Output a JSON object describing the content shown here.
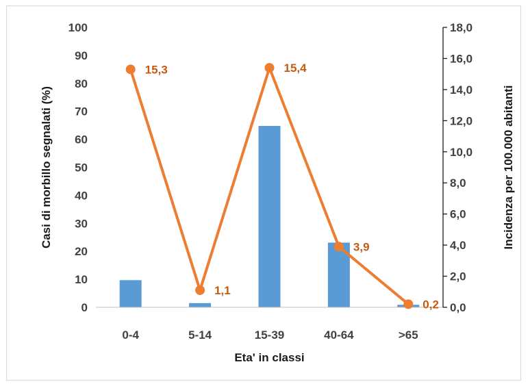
{
  "chart_data": {
    "type": "bar+line",
    "categories": [
      "0-4",
      "5-14",
      "15-39",
      "40-64",
      ">65"
    ],
    "series": [
      {
        "name": "",
        "type": "bar",
        "axis": "left",
        "values": [
          9.7,
          1.5,
          64.8,
          23.1,
          0.9
        ],
        "color": "#5b9bd5"
      },
      {
        "name": "",
        "type": "line",
        "axis": "right",
        "values": [
          15.3,
          1.1,
          15.4,
          3.9,
          0.2
        ],
        "labels": [
          "15,3",
          "1,1",
          "15,4",
          "3,9",
          "0,2"
        ],
        "color": "#ed7d31"
      }
    ],
    "xlabel": "Eta' in classi",
    "ylabel_left": "Casi di morbillo segnalati (%)",
    "ylabel_right": "Incidenza per 100.000 abitanti",
    "ylim_left": [
      0,
      100
    ],
    "ylim_right": [
      0,
      18
    ],
    "yticks_left": [
      "0",
      "10",
      "20",
      "30",
      "40",
      "50",
      "60",
      "70",
      "80",
      "90",
      "100"
    ],
    "yticks_right": [
      "0,0",
      "2,0",
      "4,0",
      "6,0",
      "8,0",
      "10,0",
      "12,0",
      "14,0",
      "16,0",
      "18,0"
    ],
    "grid": false,
    "legend": "none"
  }
}
